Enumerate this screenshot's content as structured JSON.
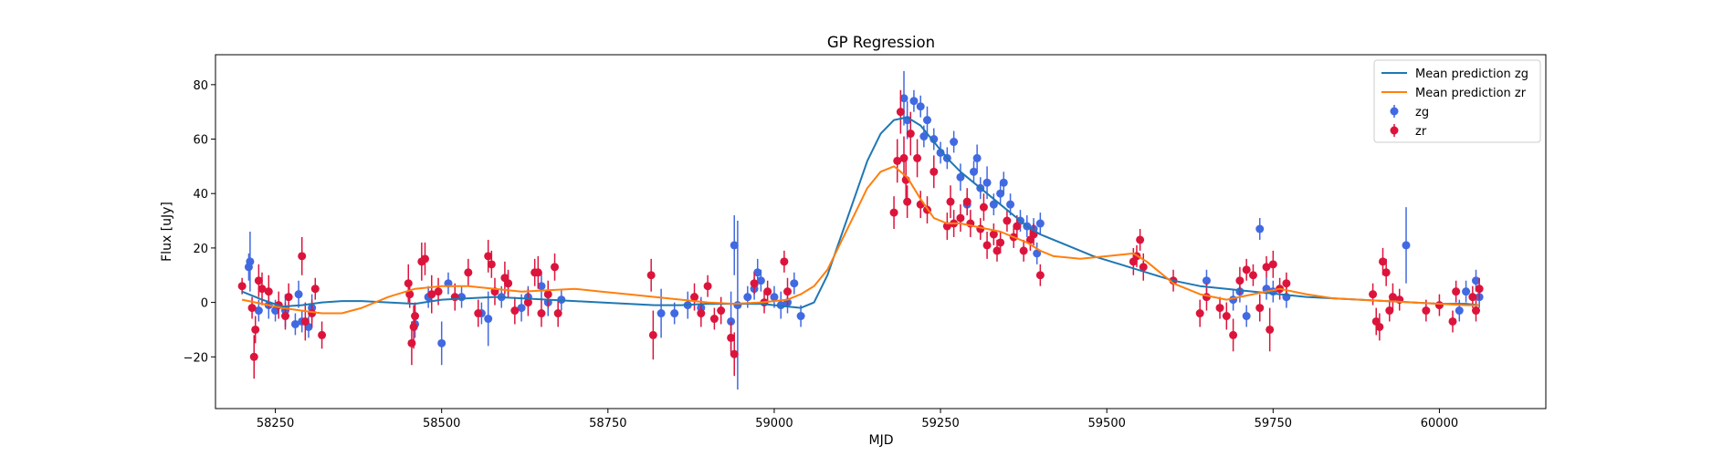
{
  "chart_data": {
    "type": "scatter",
    "title": "GP Regression",
    "xlabel": "MJD",
    "ylabel": "Flux [uJy]",
    "xlim": [
      58160,
      60160
    ],
    "ylim": [
      -39,
      91
    ],
    "xticks": [
      58250,
      58500,
      58750,
      59000,
      59250,
      59500,
      59750,
      60000
    ],
    "yticks": [
      -20,
      0,
      20,
      40,
      60,
      80
    ],
    "grid": false,
    "legend_position": "top-right",
    "lines": [
      {
        "name": "Mean prediction zg",
        "color": "#1f77b4",
        "x": [
          58200,
          58230,
          58260,
          58290,
          58320,
          58350,
          58380,
          58420,
          58460,
          58500,
          58540,
          58580,
          58620,
          58660,
          58700,
          58740,
          58780,
          58820,
          58860,
          58900,
          58940,
          58980,
          59000,
          59020,
          59040,
          59060,
          59080,
          59100,
          59120,
          59140,
          59160,
          59180,
          59200,
          59220,
          59240,
          59260,
          59280,
          59300,
          59320,
          59340,
          59360,
          59380,
          59400,
          59440,
          59480,
          59520,
          59560,
          59600,
          59640,
          59680,
          59720,
          59760,
          59800,
          59840,
          59880,
          59920,
          59960,
          60000,
          60040,
          60060
        ],
        "y": [
          4,
          1,
          -1.5,
          -1,
          0,
          0.5,
          0.5,
          0,
          -0.5,
          1,
          1.5,
          2,
          1.5,
          1,
          0.5,
          0,
          -0.5,
          -1,
          -1,
          -0.5,
          -0.5,
          -0.5,
          -1,
          -1.5,
          -2,
          0,
          10,
          24,
          38,
          52,
          62,
          67,
          68,
          65,
          59,
          53,
          48,
          44,
          40,
          36,
          32,
          28,
          25,
          21,
          17,
          14,
          11,
          8,
          6,
          5,
          4,
          3,
          2,
          1.5,
          1,
          0.5,
          0,
          -0.5,
          -0.5,
          -1
        ]
      },
      {
        "name": "Mean prediction zr",
        "color": "#ff7f0e",
        "x": [
          58200,
          58230,
          58260,
          58290,
          58320,
          58350,
          58380,
          58420,
          58460,
          58500,
          58540,
          58580,
          58620,
          58660,
          58700,
          58740,
          58780,
          58820,
          58860,
          58900,
          58940,
          58980,
          59000,
          59020,
          59040,
          59060,
          59080,
          59100,
          59120,
          59140,
          59160,
          59180,
          59200,
          59220,
          59240,
          59260,
          59280,
          59300,
          59320,
          59340,
          59360,
          59380,
          59400,
          59420,
          59460,
          59500,
          59540,
          59560,
          59580,
          59600,
          59640,
          59680,
          59720,
          59760,
          59800,
          59840,
          59880,
          59920,
          59960,
          60000,
          60040,
          60060
        ],
        "y": [
          1,
          -0.5,
          -2,
          -3,
          -4,
          -4,
          -2,
          2,
          5,
          6,
          6,
          5,
          4,
          4.5,
          5,
          4,
          3,
          2,
          1,
          0,
          -0.5,
          0,
          0.5,
          1,
          3,
          6,
          12,
          22,
          32,
          42,
          48,
          50,
          46,
          38,
          31,
          29,
          29,
          28,
          27,
          26,
          24,
          22,
          19,
          17,
          16,
          17,
          18,
          15,
          11,
          7,
          3,
          1,
          3,
          5,
          3,
          1.5,
          1,
          0.5,
          0,
          -0.5,
          -1,
          -1
        ]
      }
    ],
    "series": [
      {
        "name": "zg",
        "color": "#4169e1",
        "points": [
          [
            58210,
            13,
            5
          ],
          [
            58212,
            15,
            11
          ],
          [
            58225,
            -3,
            4
          ],
          [
            58240,
            -1,
            5
          ],
          [
            58250,
            -3,
            4
          ],
          [
            58265,
            -3,
            6
          ],
          [
            58280,
            -8,
            4
          ],
          [
            58285,
            3,
            5
          ],
          [
            58290,
            -7,
            4
          ],
          [
            58300,
            -9,
            4
          ],
          [
            58305,
            -2,
            5
          ],
          [
            58460,
            -8,
            5
          ],
          [
            58480,
            2,
            4
          ],
          [
            58500,
            -15,
            8
          ],
          [
            58510,
            7,
            4
          ],
          [
            58530,
            2,
            4
          ],
          [
            58560,
            -4,
            4
          ],
          [
            58570,
            -6,
            10
          ],
          [
            58590,
            2,
            4
          ],
          [
            58600,
            7,
            4
          ],
          [
            58620,
            -2,
            5
          ],
          [
            58630,
            2,
            4
          ],
          [
            58650,
            6,
            5
          ],
          [
            58660,
            0,
            5
          ],
          [
            58680,
            1,
            4
          ],
          [
            58830,
            -4,
            9
          ],
          [
            58850,
            -4,
            4
          ],
          [
            58870,
            -1,
            5
          ],
          [
            58890,
            -2,
            4
          ],
          [
            58935,
            -7,
            11
          ],
          [
            58940,
            21,
            11
          ],
          [
            58945,
            -1,
            31
          ],
          [
            58960,
            2,
            4
          ],
          [
            58970,
            5,
            4
          ],
          [
            58975,
            11,
            5
          ],
          [
            58980,
            8,
            4
          ],
          [
            59000,
            2,
            4
          ],
          [
            59010,
            -1,
            5
          ],
          [
            59020,
            0,
            4
          ],
          [
            59030,
            7,
            4
          ],
          [
            59040,
            -5,
            4
          ],
          [
            59195,
            75,
            10
          ],
          [
            59200,
            67,
            7
          ],
          [
            59210,
            74,
            4
          ],
          [
            59220,
            72,
            4
          ],
          [
            59225,
            61,
            4
          ],
          [
            59230,
            67,
            5
          ],
          [
            59240,
            60,
            4
          ],
          [
            59250,
            55,
            4
          ],
          [
            59260,
            53,
            4
          ],
          [
            59270,
            59,
            4
          ],
          [
            59280,
            46,
            5
          ],
          [
            59290,
            36,
            4
          ],
          [
            59300,
            48,
            4
          ],
          [
            59305,
            53,
            5
          ],
          [
            59310,
            42,
            4
          ],
          [
            59320,
            44,
            6
          ],
          [
            59330,
            36,
            4
          ],
          [
            59340,
            40,
            4
          ],
          [
            59345,
            44,
            4
          ],
          [
            59355,
            36,
            4
          ],
          [
            59370,
            30,
            4
          ],
          [
            59380,
            28,
            4
          ],
          [
            59390,
            27,
            4
          ],
          [
            59395,
            18,
            4
          ],
          [
            59400,
            29,
            4
          ],
          [
            59650,
            8,
            4
          ],
          [
            59690,
            1,
            4
          ],
          [
            59700,
            4,
            4
          ],
          [
            59710,
            -5,
            4
          ],
          [
            59730,
            27,
            4
          ],
          [
            59740,
            5,
            4
          ],
          [
            59750,
            4,
            4
          ],
          [
            59770,
            2,
            4
          ],
          [
            59950,
            21,
            14
          ],
          [
            60030,
            -3,
            4
          ],
          [
            60040,
            4,
            4
          ],
          [
            60055,
            8,
            4
          ],
          [
            60060,
            2,
            4
          ]
        ]
      },
      {
        "name": "zr",
        "color": "#dc143c",
        "points": [
          [
            58200,
            6,
            3
          ],
          [
            58215,
            -2,
            4
          ],
          [
            58218,
            -20,
            8
          ],
          [
            58220,
            -10,
            5
          ],
          [
            58225,
            8,
            6
          ],
          [
            58230,
            5,
            6
          ],
          [
            58240,
            4,
            6
          ],
          [
            58255,
            -1,
            5
          ],
          [
            58265,
            -5,
            5
          ],
          [
            58270,
            2,
            5
          ],
          [
            58290,
            17,
            7
          ],
          [
            58295,
            -7,
            7
          ],
          [
            58305,
            -4,
            5
          ],
          [
            58310,
            5,
            4
          ],
          [
            58320,
            -12,
            5
          ],
          [
            58450,
            7,
            7
          ],
          [
            58452,
            3,
            5
          ],
          [
            58455,
            -15,
            8
          ],
          [
            58458,
            -9,
            8
          ],
          [
            58460,
            -5,
            5
          ],
          [
            58470,
            15,
            7
          ],
          [
            58475,
            16,
            6
          ],
          [
            58485,
            3,
            7
          ],
          [
            58495,
            4,
            5
          ],
          [
            58520,
            2,
            5
          ],
          [
            58540,
            11,
            5
          ],
          [
            58555,
            -4,
            5
          ],
          [
            58570,
            17,
            6
          ],
          [
            58575,
            14,
            5
          ],
          [
            58580,
            4,
            5
          ],
          [
            58595,
            9,
            6
          ],
          [
            58600,
            7,
            5
          ],
          [
            58610,
            -3,
            5
          ],
          [
            58630,
            0,
            5
          ],
          [
            58640,
            11,
            5
          ],
          [
            58645,
            11,
            6
          ],
          [
            58650,
            -4,
            5
          ],
          [
            58660,
            3,
            5
          ],
          [
            58670,
            13,
            5
          ],
          [
            58675,
            -4,
            5
          ],
          [
            58815,
            10,
            6
          ],
          [
            58818,
            -12,
            9
          ],
          [
            58880,
            2,
            5
          ],
          [
            58890,
            -4,
            5
          ],
          [
            58900,
            6,
            4
          ],
          [
            58910,
            -6,
            4
          ],
          [
            58920,
            -3,
            5
          ],
          [
            58935,
            -13,
            6
          ],
          [
            58940,
            -19,
            8
          ],
          [
            58970,
            7,
            4
          ],
          [
            58985,
            0,
            4
          ],
          [
            58990,
            4,
            4
          ],
          [
            59015,
            15,
            4
          ],
          [
            59020,
            4,
            5
          ],
          [
            59180,
            33,
            6
          ],
          [
            59185,
            52,
            8
          ],
          [
            59190,
            70,
            8
          ],
          [
            59195,
            53,
            8
          ],
          [
            59198,
            45,
            8
          ],
          [
            59200,
            37,
            6
          ],
          [
            59205,
            62,
            8
          ],
          [
            59215,
            53,
            7
          ],
          [
            59220,
            36,
            5
          ],
          [
            59230,
            34,
            5
          ],
          [
            59240,
            48,
            6
          ],
          [
            59260,
            28,
            5
          ],
          [
            59265,
            37,
            6
          ],
          [
            59270,
            29,
            5
          ],
          [
            59280,
            31,
            5
          ],
          [
            59290,
            37,
            5
          ],
          [
            59295,
            29,
            5
          ],
          [
            59310,
            27,
            4
          ],
          [
            59315,
            35,
            5
          ],
          [
            59320,
            21,
            5
          ],
          [
            59330,
            25,
            4
          ],
          [
            59335,
            19,
            4
          ],
          [
            59340,
            22,
            4
          ],
          [
            59350,
            30,
            4
          ],
          [
            59360,
            24,
            4
          ],
          [
            59365,
            28,
            4
          ],
          [
            59375,
            19,
            4
          ],
          [
            59385,
            23,
            4
          ],
          [
            59390,
            25,
            4
          ],
          [
            59400,
            10,
            4
          ],
          [
            59540,
            15,
            5
          ],
          [
            59545,
            17,
            4
          ],
          [
            59550,
            23,
            4
          ],
          [
            59555,
            13,
            5
          ],
          [
            59600,
            8,
            4
          ],
          [
            59640,
            -4,
            5
          ],
          [
            59650,
            2,
            5
          ],
          [
            59670,
            -2,
            4
          ],
          [
            59680,
            -5,
            5
          ],
          [
            59690,
            -12,
            6
          ],
          [
            59700,
            8,
            5
          ],
          [
            59710,
            12,
            4
          ],
          [
            59720,
            10,
            4
          ],
          [
            59730,
            -2,
            5
          ],
          [
            59740,
            13,
            4
          ],
          [
            59745,
            -10,
            8
          ],
          [
            59750,
            14,
            5
          ],
          [
            59760,
            5,
            4
          ],
          [
            59770,
            7,
            4
          ],
          [
            59900,
            3,
            4
          ],
          [
            59905,
            -7,
            5
          ],
          [
            59910,
            -9,
            5
          ],
          [
            59915,
            15,
            5
          ],
          [
            59920,
            11,
            5
          ],
          [
            59925,
            -3,
            4
          ],
          [
            59930,
            2,
            5
          ],
          [
            59940,
            1,
            4
          ],
          [
            59980,
            -3,
            4
          ],
          [
            60000,
            -1,
            4
          ],
          [
            60020,
            -7,
            4
          ],
          [
            60025,
            4,
            4
          ],
          [
            60050,
            2,
            4
          ],
          [
            60055,
            -3,
            4
          ],
          [
            60060,
            5,
            4
          ]
        ]
      }
    ]
  }
}
